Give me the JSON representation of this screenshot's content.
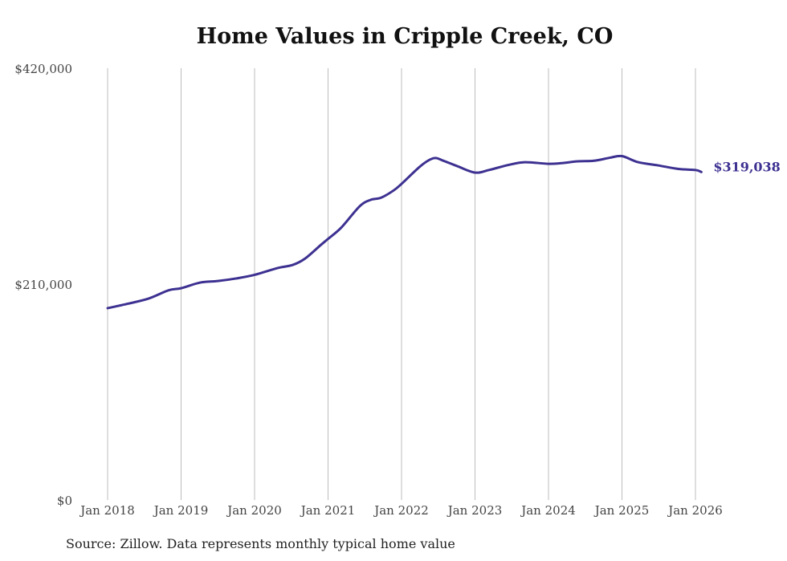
{
  "chart_data": {
    "type": "line",
    "title": "Home Values in Cripple Creek, CO",
    "source": "Source: Zillow. Data represents monthly typical home value",
    "xlabel": "",
    "ylabel": "",
    "ylim": [
      0,
      420000
    ],
    "xlim": [
      2018,
      2026
    ],
    "y_ticks": [
      0,
      210000,
      420000
    ],
    "y_tick_labels": [
      "$0",
      "$210,000",
      "$420,000"
    ],
    "x_ticks": [
      2018,
      2019,
      2020,
      2021,
      2022,
      2023,
      2024,
      2025,
      2026
    ],
    "x_tick_labels": [
      "Jan 2018",
      "Jan 2019",
      "Jan 2020",
      "Jan 2021",
      "Jan 2022",
      "Jan 2023",
      "Jan 2024",
      "Jan 2025",
      "Jan 2026"
    ],
    "grid": "vertical",
    "line_color": "#3d3191",
    "end_label": "$319,038",
    "series": [
      {
        "name": "Typical home value",
        "x": [
          2018.0,
          2018.28,
          2018.56,
          2018.83,
          2019.0,
          2019.26,
          2019.5,
          2019.75,
          2020.0,
          2020.31,
          2020.52,
          2020.69,
          2020.9,
          2021.0,
          2021.18,
          2021.43,
          2021.58,
          2021.72,
          2021.89,
          2022.0,
          2022.27,
          2022.44,
          2022.57,
          2022.76,
          2023.0,
          2023.19,
          2023.46,
          2023.68,
          2024.0,
          2024.18,
          2024.4,
          2024.62,
          2024.84,
          2025.0,
          2025.22,
          2025.49,
          2025.77,
          2026.0,
          2026.08
        ],
        "y": [
          186600,
          191000,
          196000,
          204000,
          206000,
          211500,
          213000,
          215500,
          219000,
          225600,
          228700,
          235000,
          248000,
          254000,
          265000,
          285700,
          292000,
          294000,
          301000,
          307500,
          325500,
          332500,
          330000,
          324700,
          318500,
          321000,
          326000,
          328600,
          327000,
          327700,
          329400,
          330000,
          333000,
          334500,
          328600,
          325500,
          322000,
          321000,
          319038
        ]
      }
    ]
  }
}
